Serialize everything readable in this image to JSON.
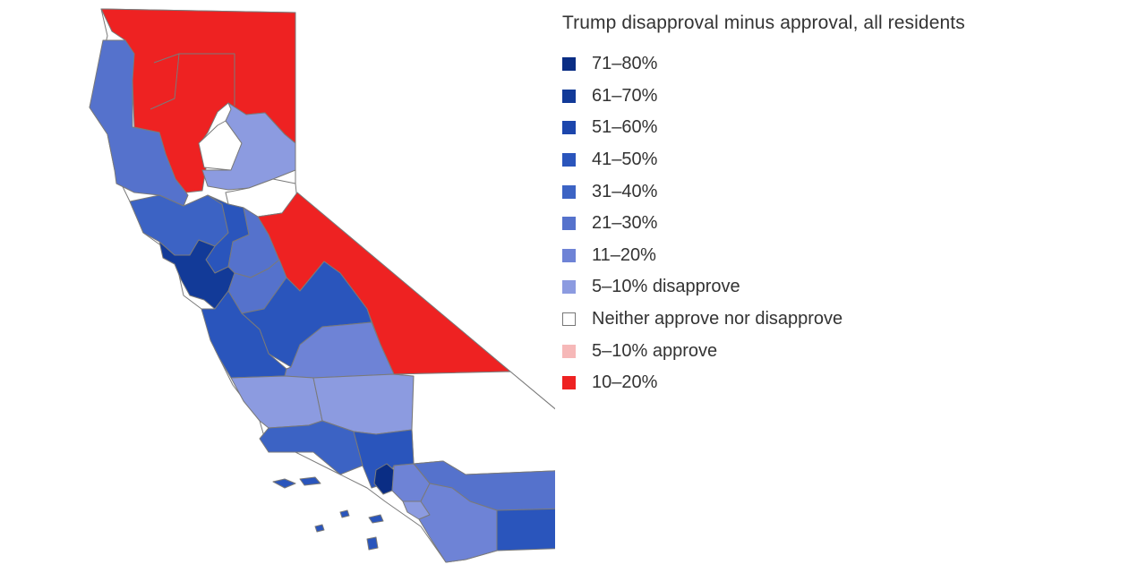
{
  "legend": {
    "title": "Trump disapproval minus approval, all residents",
    "items": [
      {
        "label": "71–80%",
        "color": "#0a2d84"
      },
      {
        "label": "61–70%",
        "color": "#123a98"
      },
      {
        "label": "51–60%",
        "color": "#1c46ac"
      },
      {
        "label": "41–50%",
        "color": "#2a55bc"
      },
      {
        "label": "31–40%",
        "color": "#3c63c4"
      },
      {
        "label": "21–30%",
        "color": "#5572cc"
      },
      {
        "label": "11–20%",
        "color": "#6e83d6"
      },
      {
        "label": "5–10% disapprove",
        "color": "#8c9be0"
      },
      {
        "label": "Neither approve nor disapprove",
        "color": "#ffffff"
      },
      {
        "label": "5–10% approve",
        "color": "#f6b8b8"
      },
      {
        "label": "10–20%",
        "color": "#ee2222"
      }
    ]
  }
}
